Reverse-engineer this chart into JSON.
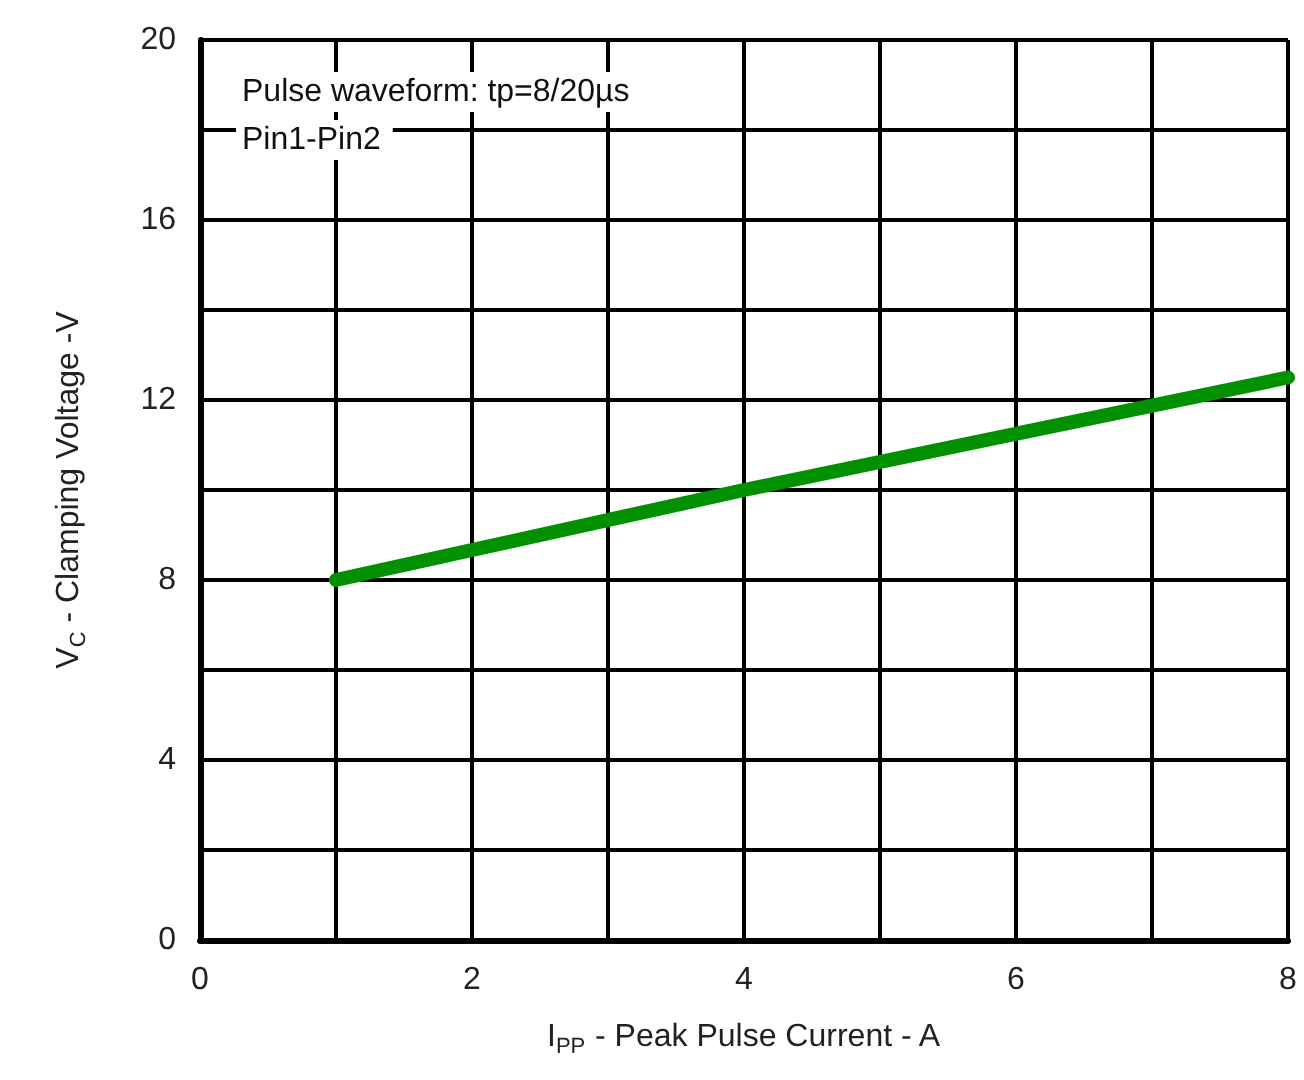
{
  "chart_data": {
    "type": "line",
    "xlabel": "I$_{PP}$ - Peak Pulse Current - A",
    "ylabel": "V$_{C}$ - Clamping Voltage -V",
    "annotations": [
      "Pulse waveform: tp=8/20µs",
      "Pin1-Pin2"
    ],
    "x": [
      1,
      4,
      8
    ],
    "series": [
      {
        "color": "#009000",
        "values": [
          8,
          10,
          12.5
        ]
      }
    ],
    "xlim": [
      0,
      8
    ],
    "xticks": [
      0,
      {
        "value": 1,
        "label": null
      },
      2,
      {
        "value": 3,
        "label": null
      },
      4,
      {
        "value": 5,
        "label": null
      },
      6,
      {
        "value": 7,
        "label": null
      },
      8
    ],
    "ylim": [
      0,
      20
    ],
    "yticks": [
      0,
      {
        "value": 2,
        "label": null
      },
      4,
      {
        "value": 6,
        "label": null
      },
      8,
      {
        "value": 10,
        "label": null
      },
      12,
      {
        "value": 14,
        "label": null
      },
      16,
      {
        "value": 18,
        "label": null
      },
      20
    ],
    "grid": true,
    "line_style": "solid"
  }
}
